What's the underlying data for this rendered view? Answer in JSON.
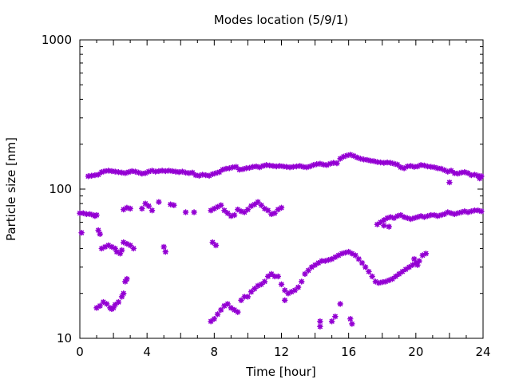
{
  "chart_data": {
    "type": "scatter",
    "title": "Modes location (5/9/1)",
    "xlabel": "Time [hour]",
    "ylabel": "Particle size [nm]",
    "xlim": [
      0,
      24
    ],
    "ylim": [
      10,
      1000
    ],
    "yscale": "log",
    "grid": false,
    "legend": "none",
    "x_ticks": [
      "0",
      "4",
      "8",
      "12",
      "16",
      "20",
      "24"
    ],
    "y_ticks": [
      "10",
      "100",
      "1000"
    ],
    "marker_color": "#9400d3",
    "series": [
      {
        "points": [
          [
            0.0,
            69
          ],
          [
            0.2,
            69
          ],
          [
            0.4,
            68
          ],
          [
            0.6,
            68
          ],
          [
            0.8,
            67
          ],
          [
            0.9,
            66
          ],
          [
            1.0,
            67
          ],
          [
            0.1,
            51
          ],
          [
            1.1,
            53
          ],
          [
            1.2,
            50
          ],
          [
            1.3,
            40
          ],
          [
            1.5,
            41
          ],
          [
            1.7,
            42
          ],
          [
            1.9,
            41
          ],
          [
            2.1,
            40
          ],
          [
            2.2,
            38
          ],
          [
            2.4,
            37
          ],
          [
            2.5,
            39
          ],
          [
            2.6,
            44
          ],
          [
            2.8,
            43
          ],
          [
            3.0,
            42
          ],
          [
            3.2,
            40
          ],
          [
            2.6,
            73
          ],
          [
            2.8,
            75
          ],
          [
            3.0,
            74
          ],
          [
            3.7,
            74
          ],
          [
            3.9,
            80
          ],
          [
            4.1,
            77
          ],
          [
            4.3,
            72
          ],
          [
            4.7,
            82
          ],
          [
            5.0,
            41
          ],
          [
            5.1,
            38
          ],
          [
            5.4,
            79
          ],
          [
            5.6,
            78
          ],
          [
            6.3,
            70
          ],
          [
            6.8,
            70
          ],
          [
            1.0,
            16
          ],
          [
            1.2,
            16.5
          ],
          [
            1.4,
            17.5
          ],
          [
            1.6,
            17
          ],
          [
            1.8,
            16
          ],
          [
            1.9,
            15.7
          ],
          [
            2.0,
            16
          ],
          [
            2.1,
            16.8
          ],
          [
            2.3,
            17.5
          ],
          [
            2.5,
            19
          ],
          [
            2.6,
            20
          ],
          [
            2.7,
            24
          ],
          [
            2.8,
            25
          ],
          [
            0.5,
            122
          ],
          [
            0.7,
            123
          ],
          [
            0.9,
            124
          ],
          [
            1.1,
            125
          ],
          [
            1.3,
            130
          ],
          [
            1.5,
            132
          ],
          [
            1.7,
            133
          ],
          [
            1.9,
            132
          ],
          [
            2.1,
            131
          ],
          [
            2.3,
            130
          ],
          [
            2.5,
            129
          ],
          [
            2.7,
            128
          ],
          [
            2.9,
            130
          ],
          [
            3.1,
            132
          ],
          [
            3.3,
            131
          ],
          [
            3.5,
            129
          ],
          [
            3.7,
            127
          ],
          [
            3.9,
            128
          ],
          [
            4.1,
            131
          ],
          [
            4.3,
            133
          ],
          [
            4.5,
            131
          ],
          [
            4.7,
            132
          ],
          [
            4.9,
            133
          ],
          [
            5.1,
            132
          ],
          [
            5.3,
            133
          ],
          [
            5.5,
            132
          ],
          [
            5.7,
            131
          ],
          [
            5.9,
            130
          ],
          [
            6.1,
            131
          ],
          [
            6.3,
            129
          ],
          [
            6.5,
            128
          ],
          [
            6.7,
            129
          ],
          [
            6.9,
            124
          ],
          [
            7.1,
            123
          ],
          [
            7.3,
            125
          ],
          [
            7.5,
            124
          ],
          [
            7.7,
            123
          ],
          [
            7.9,
            126
          ],
          [
            8.1,
            128
          ],
          [
            8.3,
            130
          ],
          [
            8.5,
            135
          ],
          [
            8.7,
            137
          ],
          [
            8.9,
            138
          ],
          [
            9.1,
            140
          ],
          [
            9.3,
            141
          ],
          [
            9.5,
            135
          ],
          [
            9.7,
            136
          ],
          [
            9.9,
            138
          ],
          [
            10.1,
            139
          ],
          [
            10.3,
            141
          ],
          [
            10.5,
            142
          ],
          [
            10.7,
            140
          ],
          [
            10.9,
            143
          ],
          [
            11.1,
            145
          ],
          [
            11.3,
            144
          ],
          [
            11.5,
            143
          ],
          [
            11.7,
            142
          ],
          [
            11.9,
            143
          ],
          [
            12.1,
            142
          ],
          [
            12.3,
            141
          ],
          [
            12.5,
            140
          ],
          [
            12.7,
            141
          ],
          [
            12.9,
            142
          ],
          [
            13.1,
            143
          ],
          [
            13.3,
            141
          ],
          [
            13.5,
            140
          ],
          [
            13.7,
            142
          ],
          [
            13.9,
            145
          ],
          [
            14.1,
            147
          ],
          [
            14.3,
            148
          ],
          [
            14.5,
            146
          ],
          [
            14.7,
            145
          ],
          [
            14.9,
            148
          ],
          [
            15.1,
            150
          ],
          [
            15.3,
            149
          ],
          [
            15.5,
            160
          ],
          [
            15.7,
            165
          ],
          [
            15.9,
            168
          ],
          [
            16.1,
            170
          ],
          [
            16.3,
            167
          ],
          [
            16.5,
            163
          ],
          [
            16.7,
            160
          ],
          [
            16.9,
            158
          ],
          [
            17.1,
            157
          ],
          [
            17.3,
            155
          ],
          [
            17.5,
            154
          ],
          [
            17.7,
            152
          ],
          [
            17.9,
            151
          ],
          [
            18.1,
            150
          ],
          [
            18.3,
            151
          ],
          [
            18.5,
            150
          ],
          [
            18.7,
            148
          ],
          [
            18.9,
            146
          ],
          [
            19.1,
            140
          ],
          [
            19.3,
            138
          ],
          [
            19.5,
            142
          ],
          [
            19.7,
            143
          ],
          [
            19.9,
            141
          ],
          [
            20.1,
            142
          ],
          [
            20.3,
            145
          ],
          [
            20.5,
            144
          ],
          [
            20.7,
            142
          ],
          [
            20.9,
            141
          ],
          [
            21.1,
            140
          ],
          [
            21.3,
            138
          ],
          [
            21.5,
            137
          ],
          [
            21.7,
            134
          ],
          [
            21.9,
            131
          ],
          [
            22.1,
            133
          ],
          [
            22.3,
            128
          ],
          [
            22.5,
            127
          ],
          [
            22.7,
            129
          ],
          [
            22.9,
            130
          ],
          [
            23.1,
            128
          ],
          [
            23.3,
            124
          ],
          [
            23.5,
            125
          ],
          [
            23.7,
            123
          ],
          [
            23.9,
            122
          ],
          [
            22.0,
            111
          ],
          [
            23.8,
            118
          ],
          [
            7.8,
            72
          ],
          [
            8.0,
            74
          ],
          [
            8.2,
            76
          ],
          [
            8.4,
            78
          ],
          [
            8.6,
            72
          ],
          [
            8.8,
            69
          ],
          [
            9.0,
            66
          ],
          [
            9.2,
            67
          ],
          [
            9.4,
            73
          ],
          [
            9.6,
            71
          ],
          [
            9.8,
            70
          ],
          [
            10.0,
            73
          ],
          [
            10.2,
            77
          ],
          [
            10.4,
            79
          ],
          [
            10.6,
            82
          ],
          [
            10.8,
            78
          ],
          [
            11.0,
            74
          ],
          [
            11.2,
            72
          ],
          [
            11.4,
            68
          ],
          [
            11.6,
            69
          ],
          [
            11.8,
            73
          ],
          [
            12.0,
            75
          ],
          [
            7.9,
            44
          ],
          [
            8.1,
            42
          ],
          [
            7.8,
            13
          ],
          [
            8.0,
            13.5
          ],
          [
            8.2,
            14.5
          ],
          [
            8.4,
            15.5
          ],
          [
            8.6,
            16.5
          ],
          [
            8.8,
            17
          ],
          [
            9.0,
            16
          ],
          [
            9.2,
            15.5
          ],
          [
            9.4,
            15
          ],
          [
            9.6,
            18
          ],
          [
            9.8,
            19
          ],
          [
            10.0,
            19
          ],
          [
            10.2,
            20.5
          ],
          [
            10.4,
            21.5
          ],
          [
            10.6,
            22.5
          ],
          [
            10.8,
            23
          ],
          [
            11.0,
            24
          ],
          [
            11.2,
            26
          ],
          [
            11.4,
            27
          ],
          [
            11.6,
            26
          ],
          [
            11.8,
            26
          ],
          [
            12.0,
            23
          ],
          [
            12.2,
            21
          ],
          [
            12.4,
            20
          ],
          [
            12.6,
            20.5
          ],
          [
            12.8,
            21
          ],
          [
            13.0,
            22
          ],
          [
            13.2,
            24
          ],
          [
            13.4,
            27
          ],
          [
            13.6,
            28.5
          ],
          [
            13.8,
            30
          ],
          [
            14.0,
            31
          ],
          [
            14.2,
            32
          ],
          [
            14.4,
            33
          ],
          [
            14.6,
            33
          ],
          [
            14.8,
            33.5
          ],
          [
            15.0,
            34
          ],
          [
            15.2,
            35
          ],
          [
            15.4,
            36
          ],
          [
            15.6,
            37
          ],
          [
            15.8,
            37.5
          ],
          [
            16.0,
            38
          ],
          [
            16.2,
            37
          ],
          [
            16.4,
            36
          ],
          [
            16.6,
            34
          ],
          [
            16.8,
            32
          ],
          [
            17.0,
            30
          ],
          [
            17.2,
            28
          ],
          [
            17.4,
            26
          ],
          [
            17.6,
            24
          ],
          [
            17.8,
            23.5
          ],
          [
            18.0,
            23.8
          ],
          [
            18.2,
            24
          ],
          [
            18.4,
            24.5
          ],
          [
            18.6,
            25
          ],
          [
            18.8,
            26
          ],
          [
            19.0,
            27
          ],
          [
            19.2,
            28
          ],
          [
            19.4,
            29
          ],
          [
            19.6,
            30
          ],
          [
            19.8,
            31
          ],
          [
            20.0,
            32
          ],
          [
            20.2,
            33
          ],
          [
            20.4,
            36
          ],
          [
            20.6,
            37
          ],
          [
            19.9,
            34
          ],
          [
            20.1,
            31
          ],
          [
            12.2,
            18
          ],
          [
            14.3,
            13
          ],
          [
            14.3,
            12
          ],
          [
            15.0,
            13
          ],
          [
            15.2,
            14
          ],
          [
            15.5,
            17
          ],
          [
            16.1,
            13.5
          ],
          [
            16.2,
            12.5
          ],
          [
            17.7,
            58
          ],
          [
            17.9,
            60
          ],
          [
            18.1,
            62
          ],
          [
            18.3,
            64
          ],
          [
            18.5,
            65
          ],
          [
            18.7,
            64
          ],
          [
            18.9,
            66
          ],
          [
            19.1,
            67
          ],
          [
            19.3,
            65
          ],
          [
            19.5,
            64
          ],
          [
            19.7,
            63
          ],
          [
            19.9,
            64
          ],
          [
            20.1,
            65
          ],
          [
            20.3,
            66
          ],
          [
            20.5,
            65
          ],
          [
            20.7,
            66
          ],
          [
            20.9,
            67
          ],
          [
            21.1,
            67
          ],
          [
            21.3,
            66
          ],
          [
            21.5,
            67
          ],
          [
            21.7,
            68
          ],
          [
            21.9,
            70
          ],
          [
            22.1,
            69
          ],
          [
            22.3,
            68
          ],
          [
            22.5,
            69
          ],
          [
            22.7,
            70
          ],
          [
            22.9,
            71
          ],
          [
            23.1,
            70
          ],
          [
            23.3,
            71
          ],
          [
            23.5,
            72
          ],
          [
            23.7,
            72
          ],
          [
            23.9,
            71
          ],
          [
            18.1,
            57
          ],
          [
            18.4,
            56
          ]
        ]
      }
    ]
  }
}
